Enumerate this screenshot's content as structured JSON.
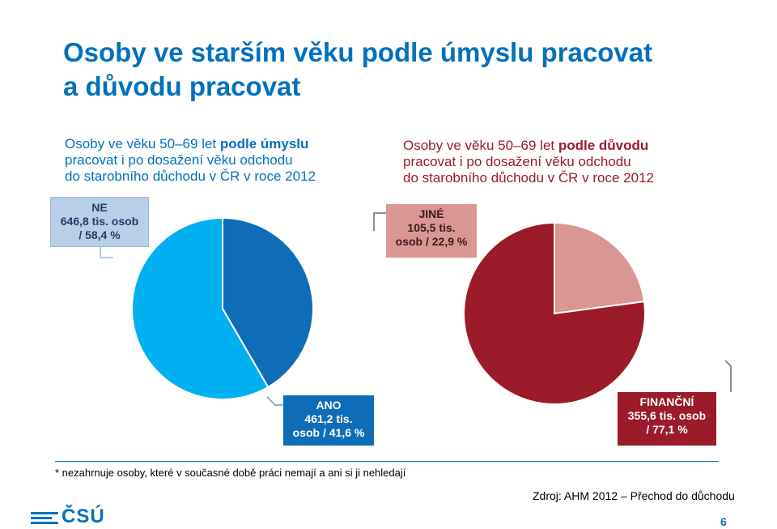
{
  "title": {
    "line1": "Osoby ve starším věku podle úmyslu pracovat",
    "line2": "a důvodu pracovat"
  },
  "left_chart": {
    "subtitle": {
      "pre": "Osoby ve věku 50–69 let ",
      "bold": "podle úmyslu",
      "line2": "pracovat i po dosažení věku odchodu",
      "line3": "do starobního důchodu v ČR v roce 2012"
    },
    "labels": {
      "ne_1": "NE",
      "ne_2": "646,8 tis. osob",
      "ne_3": "/ 58,4 %",
      "ano_1": "ANO",
      "ano_2": "461,2 tis.",
      "ano_3": "osob / 41,6 %"
    }
  },
  "right_chart": {
    "subtitle": {
      "pre": "Osoby ve věku 50–69 let ",
      "bold": "podle důvodu",
      "line2": "pracovat i po dosažení věku odchodu",
      "line3": "do starobního důchodu v ČR v roce 2012"
    },
    "labels": {
      "jine_1": "JINÉ",
      "jine_2": "105,5 tis.",
      "jine_3": "osob / 22,9 %",
      "fin_1": "FINANČNÍ",
      "fin_2": "355,6 tis. osob",
      "fin_3": "/ 77,1 %"
    }
  },
  "chart_data": [
    {
      "type": "pie",
      "title": "Osoby ve věku 50–69 let podle úmyslu pracovat i po dosažení věku odchodu do starobního důchodu v ČR v roce 2012",
      "slices": [
        {
          "name": "ANO",
          "value": 461.2,
          "percent": 41.6,
          "color": "#0f6db8"
        },
        {
          "name": "NE",
          "value": 646.8,
          "percent": 58.4,
          "color": "#00b0f0"
        }
      ]
    },
    {
      "type": "pie",
      "title": "Osoby ve věku 50–69 let podle důvodu pracovat i po dosažení věku odchodu do starobního důchodu v ČR v roce 2012",
      "slices": [
        {
          "name": "JINÉ",
          "value": 105.5,
          "percent": 22.9,
          "color": "#d99693"
        },
        {
          "name": "FINANČNÍ",
          "value": 355.6,
          "percent": 77.1,
          "color": "#9b1b2a"
        }
      ]
    }
  ],
  "footnote": "*  nezahrnuje osoby, které v současné době práci nemají a ani si ji nehledají",
  "source": "Zdroj: AHM 2012 – Přechod do důchodu",
  "logo_text": "ČSÚ",
  "page_number": "6"
}
